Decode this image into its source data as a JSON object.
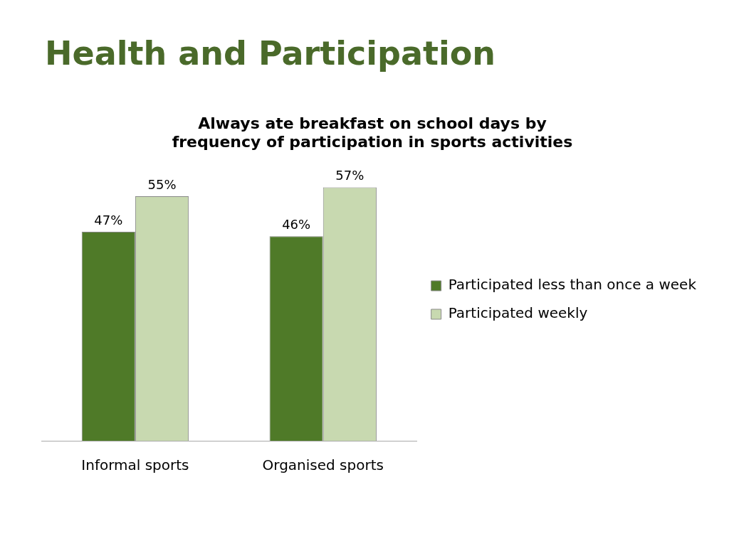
{
  "chart_data": {
    "type": "bar",
    "title": "Health and Participation",
    "subtitle": "Always ate breakfast on school days by frequency of participation in sports activities",
    "categories": [
      "Informal sports",
      "Organised sports"
    ],
    "series": [
      {
        "name": "Participated less than once a week",
        "color": "#4f7a28",
        "values": [
          47,
          46
        ],
        "value_labels": [
          "47%",
          "46%"
        ]
      },
      {
        "name": "Participated weekly",
        "color": "#c8d9b0",
        "values": [
          55,
          57
        ],
        "value_labels": [
          "55%",
          "57%"
        ]
      }
    ],
    "legend": "right",
    "tick_labels": "x",
    "grid": false
  }
}
